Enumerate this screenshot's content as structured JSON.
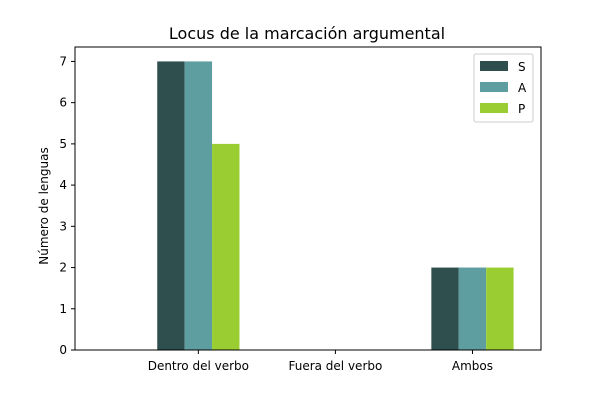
{
  "chart_data": {
    "type": "bar",
    "title": "Locus de la marcación argumental",
    "xlabel": "",
    "ylabel": "Número de lenguas",
    "categories": [
      "Dentro del verbo",
      "Fuera del verbo",
      "Ambos"
    ],
    "series": [
      {
        "name": "S",
        "values": [
          7,
          0,
          2
        ],
        "color": "#2f4f4f"
      },
      {
        "name": "A",
        "values": [
          7,
          0,
          2
        ],
        "color": "#5f9ea0"
      },
      {
        "name": "P",
        "values": [
          5,
          0,
          2
        ],
        "color": "#9acd32"
      }
    ],
    "ylim": [
      0,
      7.35
    ],
    "yticks": [
      0,
      1,
      2,
      3,
      4,
      5,
      6,
      7
    ],
    "grid": false,
    "legend_position": "top-right"
  }
}
